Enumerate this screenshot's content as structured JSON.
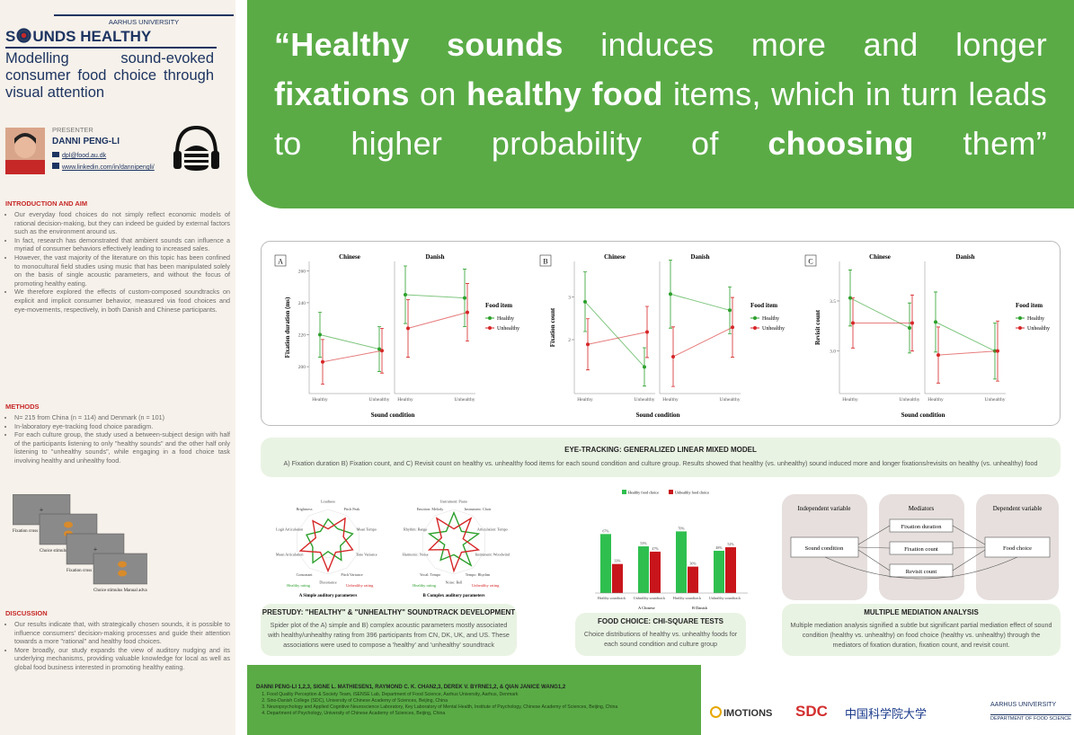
{
  "header": {
    "university": "AARHUS UNIVERSITY",
    "title_parts": [
      "S",
      "UNDS HEALTHY"
    ],
    "subtitle": "Modelling sound-evoked consumer food choice through visual attention",
    "presenter_label": "PRESENTER",
    "presenter": "DANNI PENG-LI",
    "email": "dpl@food.au.dk",
    "linkedin": "www.linkedin.com/in/dannipengli/"
  },
  "sections": [
    {
      "heading": "INTRODUCTION AND AIM",
      "bullets": [
        "Our everyday food choices do not simply reflect economic models of rational decision-making, but they can indeed be guided by external factors such as the environment around us.",
        "In fact, research has demonstrated that ambient sounds can influence a myriad of consumer behaviors effectively leading to increased sales.",
        "However, the vast majority of the literature on this topic has been confined to monocultural field studies using music that has been manipulated solely on the basis of single acoustic parameters, and without the focus of promoting healthy eating.",
        "We therefore explored the effects of custom-composed soundtracks on explicit and implicit consumer behavior, measured via food choices and eye-movements, respectively, in both Danish and Chinese participants."
      ]
    },
    {
      "heading": "METHODS",
      "bullets": [
        "N= 215 from China (n = 114) and Denmark (n = 101)",
        "In-laboratory eye-tracking food choice paradigm.",
        "For each culture group, the study used a between-subject design with half of the participants listening to only \"healthy sounds\" and the other half only listening to \"unhealthy sounds\", while engaging in a food choice task involving healthy and unhealthy food."
      ]
    },
    {
      "heading": "DISCUSSION",
      "bullets": [
        "Our results indicate that, with strategically chosen sounds, it is possible to influence consumers' decision-making processes and guide their attention towards a more \"rational\" and healthy food choices.",
        "More broadly, our study expands the view of auditory nudging and its underlying mechanisms, providing valuable knowledge for local as well as global food business interested in promoting healthy eating."
      ]
    }
  ],
  "paradigm": {
    "steps": [
      "Fixation cross 2 sec",
      "Choice stimulus Manual advance",
      "Fixation cross 2 sec",
      "Choice stimulus Manual advance"
    ]
  },
  "quote": [
    {
      "text": "“Healthy sounds",
      "bold": true
    },
    {
      "text": " induces more and longer ",
      "bold": false
    },
    {
      "text": "fixations",
      "bold": true
    },
    {
      "text": " on ",
      "bold": false
    },
    {
      "text": "healthy food",
      "bold": true
    },
    {
      "text": " items, which in turn leads to higher probability of ",
      "bold": false
    },
    {
      "text": "choosing",
      "bold": true
    },
    {
      "text": " them”",
      "bold": false
    }
  ],
  "figure": {
    "facets": [
      "Chinese",
      "Danish"
    ],
    "categories": [
      "Healthy",
      "Unhealthy"
    ],
    "xlabel": "Sound condition",
    "legend_title": "Food item",
    "series_names": [
      "Healthy",
      "Unhealthy"
    ],
    "colors": [
      "#2ca02c",
      "#d62728"
    ],
    "panels": [
      {
        "label": "A",
        "ylabel": "Fixation duration (ms)",
        "ylim": [
          186,
          263
        ],
        "yticks": [
          200,
          220,
          240,
          260
        ],
        "values": [
          [
            [
              220,
              211
            ],
            [
              245,
              243
            ]
          ],
          [
            [
              203,
              210
            ],
            [
              224,
              234
            ]
          ]
        ],
        "errors": [
          [
            [
              14,
              14
            ],
            [
              18,
              18
            ]
          ],
          [
            [
              14,
              14
            ],
            [
              18,
              18
            ]
          ]
        ]
      },
      {
        "label": "B",
        "ylabel": "Fixation count",
        "ylim": [
          0.84,
          3.73
        ],
        "yticks": [
          2,
          3
        ],
        "values": [
          [
            [
              2.89,
              1.36
            ],
            [
              3.07,
              2.69
            ]
          ],
          [
            [
              1.89,
              2.18
            ],
            [
              1.6,
              2.29
            ]
          ]
        ],
        "errors": [
          [
            [
              0.7,
              0.45
            ],
            [
              0.8,
              0.55
            ]
          ],
          [
            [
              0.6,
              0.6
            ],
            [
              0.7,
              0.7
            ]
          ]
        ]
      },
      {
        "label": "C",
        "ylabel": "Revisit count",
        "ylim": [
          2.62,
          3.85
        ],
        "yticks": [
          {
            "value": 3.0,
            "label": "3.0"
          },
          {
            "value": 3.5,
            "label": "3.5"
          }
        ],
        "values": [
          [
            [
              3.53,
              3.23
            ],
            [
              3.29,
              3.0
            ]
          ],
          [
            [
              3.28,
              3.28
            ],
            [
              2.96,
              3.0
            ]
          ]
        ],
        "errors": [
          [
            [
              0.28,
              0.25
            ],
            [
              0.3,
              0.28
            ]
          ],
          [
            [
              0.25,
              0.28
            ],
            [
              0.28,
              0.3
            ]
          ]
        ]
      }
    ],
    "heading": "EYE-TRACKING: GENERALIZED LINEAR MIXED MODEL",
    "caption": "A) Fixation duration B) Fixation count, and C) Revisit count on healthy vs. unhealthy food items for each sound condition and culture group. Results showed that healthy (vs. unhealthy) sound induced more and longer fixations/revisits on healthy (vs. unhealthy) food"
  },
  "prestudy": {
    "heading": "PRESTUDY: \"HEALTHY\" & \"UNHEALTHY\" SOUNDTRACK DEVELOPMENT",
    "text": "Spider plot of the A) simple and B) complex acoustic parameters mostly associated with healthy/unhealthy rating from 396 participants from CN, DK, UK, and US. These associations were used to compose a 'healthy' and 'unhealthy' soundtrack",
    "legend": [
      "Healthy rating",
      "Unhealthy rating"
    ],
    "colors": [
      "#2ca02c",
      "#d62728"
    ],
    "radars": [
      {
        "caption": "A  Simple auditory parameters",
        "axes": [
          "Loudness",
          "Pitch Peak",
          "Mean Tempo",
          "Tone Variance",
          "Pitch Variance",
          "Dissonance",
          "Consonant",
          "Mean Articulation",
          "Logit Articulation",
          "Brightness"
        ],
        "values": [
          [
            0.7,
            0.5,
            0.8,
            0.4,
            0.7,
            0.3,
            0.8,
            0.5,
            0.7,
            0.4
          ],
          [
            0.4,
            0.9,
            0.5,
            0.8,
            0.4,
            0.9,
            0.4,
            0.9,
            0.4,
            0.8
          ]
        ]
      },
      {
        "caption": "B  Complex auditory parameters",
        "axes": [
          "Instrument: Piano",
          "Instrument: Choir",
          "Articulation: Tempo",
          "Instrument: Woodwind",
          "Tempo: Rhythm",
          "Noise: Bell",
          "Vocal: Tempo",
          "Harmonic: Noise",
          "Rhythm: Range",
          "Emotion: Melody"
        ],
        "values": [
          [
            0.9,
            0.4,
            0.8,
            0.3,
            0.9,
            0.4,
            0.7,
            0.3,
            0.8,
            0.4
          ],
          [
            0.4,
            0.9,
            0.3,
            0.8,
            0.4,
            0.9,
            0.3,
            0.8,
            0.4,
            0.9
          ]
        ]
      }
    ]
  },
  "food_choice": {
    "heading": "FOOD CHOICE: CHI-SQUARE TESTS",
    "text": "Choice distributions of healthy vs. unhealthy foods for each sound condition and culture group",
    "categories": [
      "Healthy soundtrack",
      "Unhealthy soundtrack",
      "Healthy soundtrack",
      "Unhealthy soundtrack"
    ],
    "cultures": [
      "A  Chinese",
      "B  Danish"
    ],
    "ylim": [
      0,
      100
    ],
    "series": [
      {
        "name": "Healthy food choice",
        "color": "#2fbf4f",
        "values": [
          67,
          53,
          70,
          48
        ],
        "value_labels": [
          "67%",
          "53%",
          "70%",
          "48%"
        ]
      },
      {
        "name": "Unhealthy food choice",
        "color": "#c8151b",
        "values": [
          33,
          47,
          30,
          52
        ],
        "value_labels": [
          "33%",
          "47%",
          "30%",
          "52%"
        ]
      }
    ]
  },
  "mediation": {
    "heading": "MULTIPLE MEDIATION ANALYSIS",
    "text": "Multiple mediation analysis signified a subtle but significant partial mediation effect of sound condition (healthy vs. unhealthy) on food choice (healthy vs. unhealthy) through the mediators of fixation duration, fixation count, and revisit count.",
    "groups": [
      "Independent variable",
      "Mediators",
      "Dependent variable"
    ],
    "nodes": [
      "Sound condition",
      "Fixation duration",
      "Fixation count",
      "Revisit count",
      "Food choice"
    ]
  },
  "footer": {
    "authors": "DANNI PENG-LI 1,2,3, SIGNE L. MATHIESEN1, RAYMOND C. K. CHAN2,3, DEREK V. BYRNE1,2, & QIAN JANICE WANG1,2",
    "affiliations": [
      "Food Quality Perception & Society Team, iSENSE Lab, Department of Food Science, Aarhus University, Aarhus, Denmark",
      "Sino-Danish College (SDC), University of Chinese Academy of Sciences, Beijing, China",
      "Neuropsychology and Applied Cognitive Neuroscience Laboratory, Key Laboratory of Mental Health, Institute of Psychology, Chinese Academy of Sciences, Beijing, China",
      "Department of Psychology, University of Chinese Academy of Sciences, Beijing, China"
    ],
    "logos": [
      "IMOTIONS",
      "SDC",
      "中国科学院大学",
      "AARHUS UNIVERSITY",
      "DEPARTMENT OF FOOD SCIENCE"
    ]
  }
}
